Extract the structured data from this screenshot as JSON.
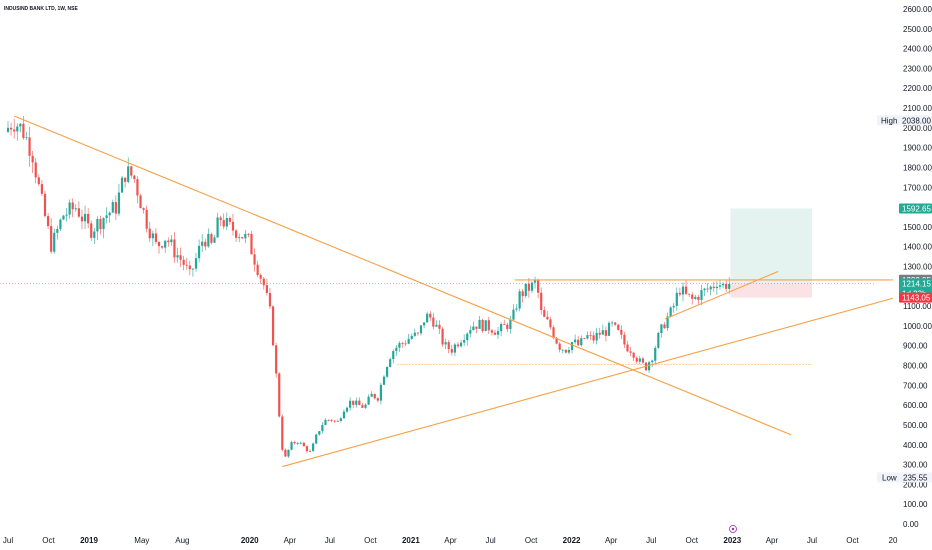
{
  "header": {
    "title": "INDUSIND BANK LTD, 1W, NSE"
  },
  "chart_data": {
    "type": "candlestick",
    "x_unit": "date",
    "x_range": [
      "2018-07-01",
      "2023-10-01"
    ],
    "ylim": [
      0,
      2600
    ],
    "y_ticks": [
      0,
      100,
      200,
      300,
      400,
      500,
      600,
      700,
      800,
      900,
      1000,
      1100,
      1200,
      1300,
      1400,
      1500,
      1600,
      1700,
      1800,
      1900,
      2000,
      2100,
      2200,
      2300,
      2400,
      2500,
      2600
    ],
    "y_tick_labels": [
      "0.00",
      "100.00",
      "200.00",
      "300.00",
      "400.00",
      "500.00",
      "600.00",
      "700.00",
      "800.00",
      "900.00",
      "1000.00",
      "1100.00",
      "1200.00",
      "1300.00",
      "1400.00",
      "1500.00",
      "1600.00",
      "1700.00",
      "1800.00",
      "1900.00",
      "2000.00",
      "2100.00",
      "2200.00",
      "2300.00",
      "2400.00",
      "2500.00",
      "2600.00"
    ],
    "x_ticks": [
      {
        "date": "2018-07-01",
        "label": "Jul",
        "bold": false
      },
      {
        "date": "2018-10-01",
        "label": "Oct",
        "bold": false
      },
      {
        "date": "2019-01-01",
        "label": "2019",
        "bold": true
      },
      {
        "date": "2019-05-01",
        "label": "May",
        "bold": false
      },
      {
        "date": "2019-08-01",
        "label": "Aug",
        "bold": false
      },
      {
        "date": "2020-01-01",
        "label": "2020",
        "bold": true
      },
      {
        "date": "2020-04-01",
        "label": "Apr",
        "bold": false
      },
      {
        "date": "2020-07-01",
        "label": "Jul",
        "bold": false
      },
      {
        "date": "2020-10-01",
        "label": "Oct",
        "bold": false
      },
      {
        "date": "2021-01-01",
        "label": "2021",
        "bold": true
      },
      {
        "date": "2021-04-01",
        "label": "Apr",
        "bold": false
      },
      {
        "date": "2021-07-01",
        "label": "Jul",
        "bold": false
      },
      {
        "date": "2021-10-01",
        "label": "Oct",
        "bold": false
      },
      {
        "date": "2022-01-01",
        "label": "2022",
        "bold": true
      },
      {
        "date": "2022-04-01",
        "label": "Apr",
        "bold": false
      },
      {
        "date": "2022-07-01",
        "label": "Jul",
        "bold": false
      },
      {
        "date": "2022-10-01",
        "label": "Oct",
        "bold": false
      },
      {
        "date": "2023-01-01",
        "label": "2023",
        "bold": true
      },
      {
        "date": "2023-04-01",
        "label": "Apr",
        "bold": false
      },
      {
        "date": "2023-07-01",
        "label": "Jul",
        "bold": false
      },
      {
        "date": "2023-10-01",
        "label": "Oct",
        "bold": false
      },
      {
        "date": "2024-01-01",
        "label": "20",
        "bold": false
      }
    ],
    "price_path": [
      [
        "2018-07-01",
        1980
      ],
      [
        "2018-07-20",
        2038
      ],
      [
        "2018-08-10",
        1990
      ],
      [
        "2018-09-01",
        1880
      ],
      [
        "2018-09-20",
        1650
      ],
      [
        "2018-10-15",
        1400
      ],
      [
        "2018-11-10",
        1560
      ],
      [
        "2018-12-10",
        1600
      ],
      [
        "2019-01-10",
        1480
      ],
      [
        "2019-02-10",
        1550
      ],
      [
        "2019-03-10",
        1600
      ],
      [
        "2019-04-01",
        1780
      ],
      [
        "2019-04-20",
        1750
      ],
      [
        "2019-05-15",
        1550
      ],
      [
        "2019-06-10",
        1400
      ],
      [
        "2019-07-01",
        1450
      ],
      [
        "2019-07-20",
        1380
      ],
      [
        "2019-08-10",
        1320
      ],
      [
        "2019-08-25",
        1250
      ],
      [
        "2019-09-10",
        1350
      ],
      [
        "2019-09-25",
        1450
      ],
      [
        "2019-10-15",
        1400
      ],
      [
        "2019-11-01",
        1550
      ],
      [
        "2019-11-20",
        1500
      ],
      [
        "2019-12-10",
        1480
      ],
      [
        "2020-01-05",
        1430
      ],
      [
        "2020-01-25",
        1300
      ],
      [
        "2020-02-10",
        1200
      ],
      [
        "2020-02-25",
        1050
      ],
      [
        "2020-03-10",
        700
      ],
      [
        "2020-03-20",
        400
      ],
      [
        "2020-03-28",
        330
      ],
      [
        "2020-04-10",
        400
      ],
      [
        "2020-04-25",
        420
      ],
      [
        "2020-05-10",
        390
      ],
      [
        "2020-05-25",
        360
      ],
      [
        "2020-06-10",
        460
      ],
      [
        "2020-06-25",
        520
      ],
      [
        "2020-07-10",
        530
      ],
      [
        "2020-07-25",
        510
      ],
      [
        "2020-08-10",
        590
      ],
      [
        "2020-08-25",
        620
      ],
      [
        "2020-09-10",
        600
      ],
      [
        "2020-09-25",
        590
      ],
      [
        "2020-10-10",
        650
      ],
      [
        "2020-10-25",
        640
      ],
      [
        "2020-11-10",
        780
      ],
      [
        "2020-11-25",
        870
      ],
      [
        "2020-12-10",
        900
      ],
      [
        "2020-12-25",
        920
      ],
      [
        "2021-01-10",
        950
      ],
      [
        "2021-01-25",
        950
      ],
      [
        "2021-02-10",
        1050
      ],
      [
        "2021-02-25",
        1040
      ],
      [
        "2021-03-10",
        980
      ],
      [
        "2021-03-25",
        900
      ],
      [
        "2021-04-10",
        880
      ],
      [
        "2021-04-25",
        920
      ],
      [
        "2021-05-10",
        960
      ],
      [
        "2021-05-25",
        1000
      ],
      [
        "2021-06-10",
        1010
      ],
      [
        "2021-06-25",
        1000
      ],
      [
        "2021-07-10",
        990
      ],
      [
        "2021-07-25",
        970
      ],
      [
        "2021-08-10",
        1000
      ],
      [
        "2021-08-25",
        1020
      ],
      [
        "2021-09-10",
        1150
      ],
      [
        "2021-09-25",
        1180
      ],
      [
        "2021-10-10",
        1200
      ],
      [
        "2021-10-20",
        1220
      ],
      [
        "2021-11-01",
        1050
      ],
      [
        "2021-11-20",
        1000
      ],
      [
        "2021-12-10",
        900
      ],
      [
        "2021-12-25",
        880
      ],
      [
        "2022-01-10",
        920
      ],
      [
        "2022-01-25",
        900
      ],
      [
        "2022-02-10",
        950
      ],
      [
        "2022-02-25",
        930
      ],
      [
        "2022-03-10",
        960
      ],
      [
        "2022-03-25",
        970
      ],
      [
        "2022-04-10",
        1000
      ],
      [
        "2022-04-25",
        960
      ],
      [
        "2022-05-10",
        900
      ],
      [
        "2022-05-25",
        880
      ],
      [
        "2022-06-10",
        820
      ],
      [
        "2022-06-25",
        790
      ],
      [
        "2022-07-10",
        850
      ],
      [
        "2022-07-25",
        950
      ],
      [
        "2022-08-10",
        1030
      ],
      [
        "2022-08-25",
        1080
      ],
      [
        "2022-09-10",
        1190
      ],
      [
        "2022-09-25",
        1150
      ],
      [
        "2022-10-10",
        1130
      ],
      [
        "2022-10-25",
        1160
      ],
      [
        "2022-11-10",
        1180
      ],
      [
        "2022-11-25",
        1200
      ],
      [
        "2022-12-05",
        1230
      ],
      [
        "2022-12-15",
        1200
      ],
      [
        "2022-12-28",
        1214
      ]
    ],
    "trendlines": [
      {
        "name": "descending",
        "from": [
          "2018-07-15",
          2060
        ],
        "to": [
          "2023-05-15",
          450
        ]
      },
      {
        "name": "ascending",
        "from": [
          "2020-03-15",
          290
        ],
        "to": [
          "2024-01-01",
          1140
        ]
      },
      {
        "name": "resistance",
        "from": [
          "2021-08-25",
          1232
        ],
        "to": [
          "2024-01-01",
          1232
        ]
      },
      {
        "name": "rising-support",
        "from": [
          "2022-08-01",
          1035
        ],
        "to": [
          "2023-04-15",
          1275
        ]
      }
    ],
    "support_level": {
      "value": 805,
      "from": "2020-12-01",
      "to": "2023-07-01"
    },
    "current_price_line": 1214.15,
    "position": {
      "entry": 1214.15,
      "target": 1592.65,
      "stop": 1143.05,
      "from": "2022-12-28",
      "to": "2023-07-01",
      "profit_color": "#e4f2f0",
      "loss_color": "#fae2e5"
    },
    "markers": {
      "high": 2038.0,
      "low": 235.55,
      "high_label": "High",
      "low_label": "Low"
    }
  },
  "price_tags": {
    "high_value": "2038.00",
    "target": "1592.65",
    "resistance": "1232.95",
    "current": "1214.15",
    "countdown": "1d 23h",
    "stop": "1143.05",
    "low_value": "235.55"
  },
  "colors": {
    "up": "#26a69a",
    "down": "#ef5350",
    "trendline": "#f7a046",
    "target_tag": "#22ab94",
    "stop_tag": "#f23645",
    "resistance_tag": "#787b86",
    "current_tag": "#22ab94",
    "grid_text": "#131722",
    "event_marker": "#9c27b0"
  }
}
